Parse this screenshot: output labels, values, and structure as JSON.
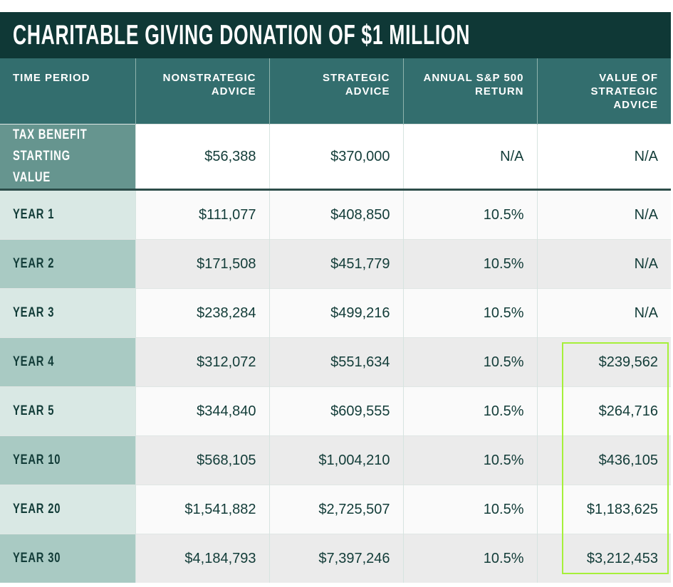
{
  "chart_data": {
    "type": "table",
    "title": "CHARITABLE GIVING DONATION OF $1 MILLION",
    "columns": [
      "TIME PERIOD",
      "NONSTRATEGIC ADVICE",
      "STRATEGIC ADVICE",
      "ANNUAL S&P 500 RETURN",
      "VALUE OF STRATEGIC ADVICE"
    ],
    "rows": [
      [
        "TAX BENEFIT STARTING VALUE",
        "$56,388",
        "$370,000",
        "N/A",
        "N/A"
      ],
      [
        "YEAR 1",
        "$111,077",
        "$408,850",
        "10.5%",
        "N/A"
      ],
      [
        "YEAR 2",
        "$171,508",
        "$451,779",
        "10.5%",
        "N/A"
      ],
      [
        "YEAR 3",
        "$238,284",
        "$499,216",
        "10.5%",
        "N/A"
      ],
      [
        "YEAR 4",
        "$312,072",
        "$551,634",
        "10.5%",
        "$239,562"
      ],
      [
        "YEAR 5",
        "$344,840",
        "$609,555",
        "10.5%",
        "$264,716"
      ],
      [
        "YEAR 10",
        "$568,105",
        "$1,004,210",
        "10.5%",
        "$436,105"
      ],
      [
        "YEAR 20",
        "$1,541,882",
        "$2,725,507",
        "10.5%",
        "$1,183,625"
      ],
      [
        "YEAR 30",
        "$4,184,793",
        "$7,397,246",
        "10.5%",
        "$3,212,453"
      ]
    ],
    "highlighted": "VALUE OF STRATEGIC ADVICE, YEAR 4 to YEAR 30"
  },
  "colors": {
    "title_bg": "#0f3836",
    "header_bg": "#336e6e",
    "highlight": "#a6f03a"
  }
}
